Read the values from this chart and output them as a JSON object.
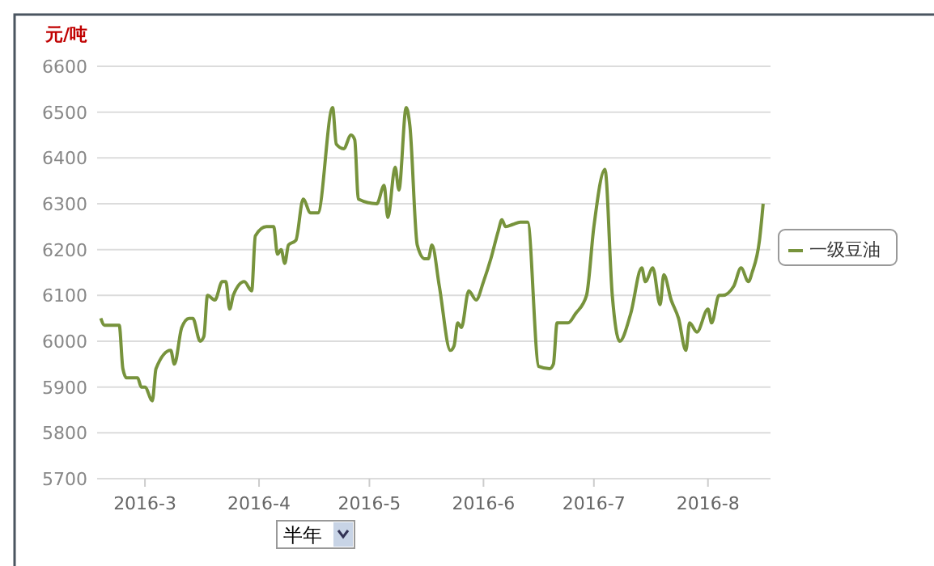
{
  "chart_data": {
    "type": "line",
    "ylabel": "元/吨",
    "annotations": [
      "半年"
    ],
    "x": [
      "2016-02-18",
      "2016-02-19",
      "2016-02-23",
      "2016-02-24",
      "2016-02-25",
      "2016-02-28",
      "2016-02-29",
      "2016-03-01",
      "2016-03-03",
      "2016-03-04",
      "2016-03-08",
      "2016-03-09",
      "2016-03-11",
      "2016-03-13",
      "2016-03-14",
      "2016-03-16",
      "2016-03-17",
      "2016-03-18",
      "2016-03-20",
      "2016-03-22",
      "2016-03-23",
      "2016-03-24",
      "2016-03-25",
      "2016-03-28",
      "2016-03-30",
      "2016-03-31",
      "2016-04-03",
      "2016-04-05",
      "2016-04-06",
      "2016-04-07",
      "2016-04-08",
      "2016-04-09",
      "2016-04-11",
      "2016-04-13",
      "2016-04-15",
      "2016-04-17",
      "2016-04-21",
      "2016-04-22",
      "2016-04-24",
      "2016-04-26",
      "2016-04-27",
      "2016-04-28",
      "2016-05-03",
      "2016-05-05",
      "2016-05-06",
      "2016-05-08",
      "2016-05-09",
      "2016-05-11",
      "2016-05-12",
      "2016-05-14",
      "2016-05-16",
      "2016-05-17",
      "2016-05-18",
      "2016-05-20",
      "2016-05-23",
      "2016-05-24",
      "2016-05-25",
      "2016-05-26",
      "2016-05-28",
      "2016-05-30",
      "2016-06-01",
      "2016-06-03",
      "2016-06-05",
      "2016-06-06",
      "2016-06-07",
      "2016-06-09",
      "2016-06-11",
      "2016-06-13",
      "2016-06-16",
      "2016-06-19",
      "2016-06-20",
      "2016-06-21",
      "2016-06-24",
      "2016-06-26",
      "2016-06-29",
      "2016-07-01",
      "2016-07-04",
      "2016-07-06",
      "2016-07-08",
      "2016-07-11",
      "2016-07-14",
      "2016-07-15",
      "2016-07-17",
      "2016-07-19",
      "2016-07-20",
      "2016-07-22",
      "2016-07-24",
      "2016-07-26",
      "2016-07-27",
      "2016-07-29",
      "2016-08-01",
      "2016-08-02",
      "2016-08-04",
      "2016-08-05",
      "2016-08-08",
      "2016-08-10",
      "2016-08-12",
      "2016-08-13",
      "2016-08-15",
      "2016-08-16"
    ],
    "series": [
      {
        "name": "一级豆油",
        "color": "#77933c",
        "values": [
          6050,
          6035,
          6035,
          5940,
          5920,
          5920,
          5900,
          5900,
          5870,
          5940,
          5980,
          5950,
          6030,
          6050,
          6050,
          6000,
          6010,
          6100,
          6090,
          6130,
          6130,
          6070,
          6100,
          6130,
          6110,
          6230,
          6250,
          6250,
          6190,
          6200,
          6170,
          6210,
          6220,
          6310,
          6280,
          6280,
          6510,
          6430,
          6420,
          6450,
          6440,
          6310,
          6300,
          6340,
          6270,
          6380,
          6330,
          6510,
          6470,
          6210,
          6180,
          6180,
          6210,
          6120,
          5980,
          5990,
          6040,
          6030,
          6110,
          6090,
          6130,
          6180,
          6240,
          6265,
          6250,
          6255,
          6260,
          6260,
          5945,
          5940,
          5950,
          6040,
          6040,
          6060,
          6100,
          6250,
          6375,
          6100,
          6000,
          6060,
          6160,
          6130,
          6160,
          6080,
          6145,
          6090,
          6050,
          5980,
          6040,
          6020,
          6070,
          6040,
          6100,
          6100,
          6120,
          6160,
          6130,
          6150,
          6220,
          6300
        ]
      }
    ],
    "xlim": [
      "2016-02-17",
      "2016-08-18"
    ],
    "xticks": [
      {
        "value": "2016-03-01",
        "label": "2016-3"
      },
      {
        "value": "2016-04-01",
        "label": "2016-4"
      },
      {
        "value": "2016-05-01",
        "label": "2016-5"
      },
      {
        "value": "2016-06-01",
        "label": "2016-6"
      },
      {
        "value": "2016-07-01",
        "label": "2016-7"
      },
      {
        "value": "2016-08-01",
        "label": "2016-8"
      }
    ],
    "ylim": [
      5700,
      6600
    ],
    "yticks": [
      5700,
      5800,
      5900,
      6000,
      6100,
      6200,
      6300,
      6400,
      6500,
      6600
    ],
    "grid": "y",
    "legend": "right",
    "marker": "none",
    "line_style": "solid"
  }
}
